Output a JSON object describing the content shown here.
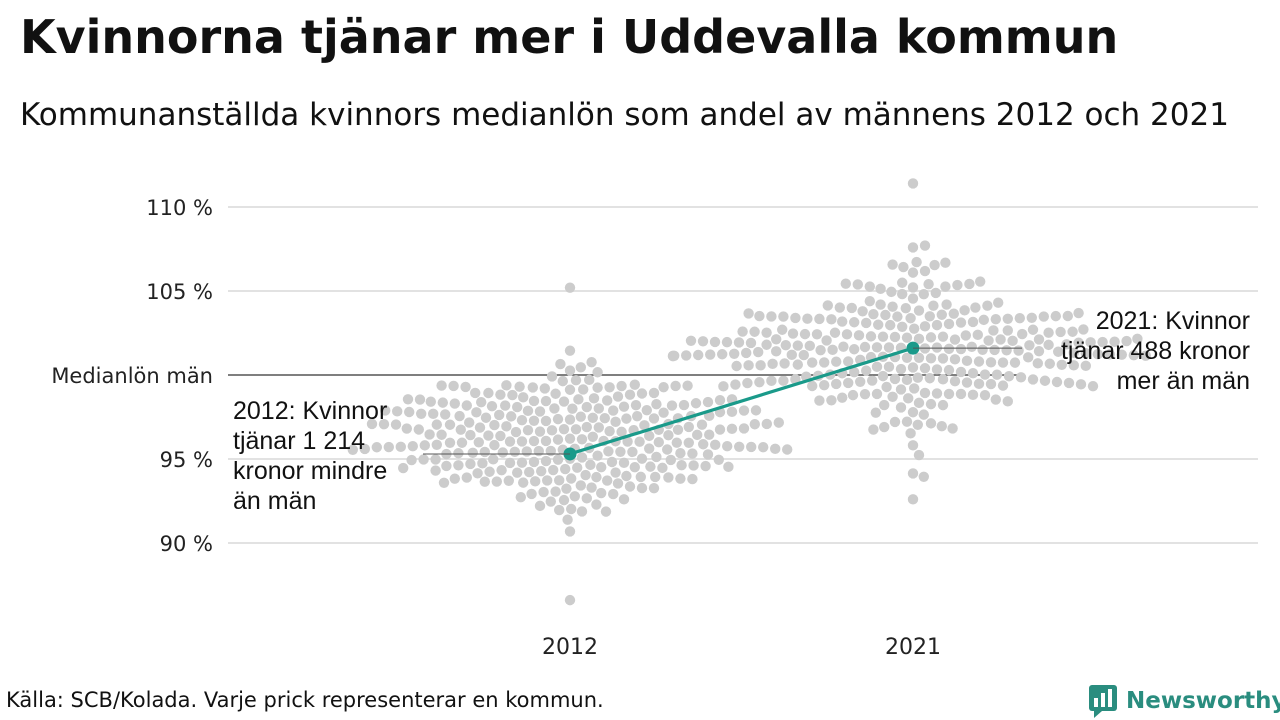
{
  "header": {
    "title": "Kvinnorna tjänar mer i Uddevalla kommun",
    "subtitle": "Kommunanställda kvinnors medianlön som andel av männens 2012 och 2021"
  },
  "footer": {
    "source": "Källa: SCB/Kolada. Varje prick representerar en kommun."
  },
  "brand": {
    "name": "Newsworthy",
    "icon": "newsworthy-chart-icon",
    "color": "#2a8d7f"
  },
  "chart_data": {
    "type": "scatter",
    "title": "Kvinnorna tjänar mer i Uddevalla kommun",
    "subtitle": "Kommunanställda kvinnors medianlön som andel av männens 2012 och 2021",
    "xlabel": "",
    "ylabel": "",
    "categories": [
      "2012",
      "2021"
    ],
    "ylim": [
      86,
      112
    ],
    "y_ticks": [
      {
        "value": 90,
        "label": "90 %"
      },
      {
        "value": 95,
        "label": "95 %"
      },
      {
        "value": 100,
        "label": "Medianlön män"
      },
      {
        "value": 105,
        "label": "105 %"
      },
      {
        "value": 110,
        "label": "110 %"
      }
    ],
    "grid": true,
    "reference_line": {
      "value": 100,
      "label": "Medianlön män"
    },
    "distributions": [
      {
        "category": "2012",
        "median": 96.2,
        "spread": 2.1,
        "min": 86.6,
        "max": 105.2,
        "count": 290
      },
      {
        "category": "2021",
        "median": 101.6,
        "spread": 2.2,
        "min": 92.6,
        "max": 111.4,
        "count": 290
      }
    ],
    "highlight": {
      "name": "Uddevalla",
      "color": "#1a9a8a",
      "points": [
        {
          "x": "2012",
          "y": 95.3
        },
        {
          "x": "2021",
          "y": 101.6
        }
      ]
    },
    "annotations": [
      {
        "x": "2012",
        "y": 95.3,
        "text": [
          "2012: Kvinnor",
          "tjänar 1 214",
          "kronor mindre",
          "än män"
        ]
      },
      {
        "x": "2021",
        "y": 101.6,
        "text": [
          "2021: Kvinnor",
          "tjänar 488 kronor",
          "mer än män"
        ]
      }
    ],
    "dot_color": "#cccccc"
  }
}
